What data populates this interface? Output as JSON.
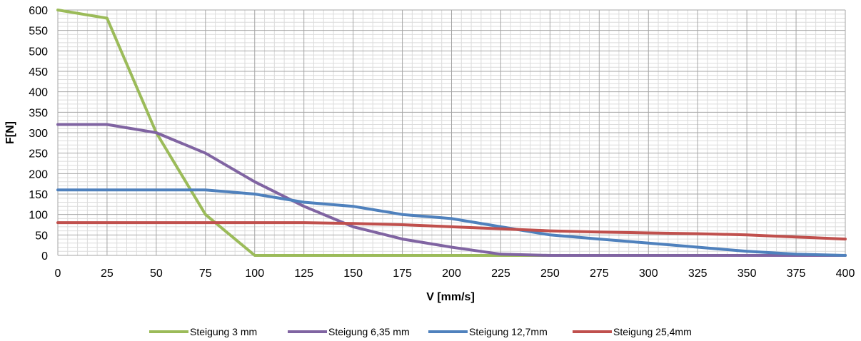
{
  "chart_data": {
    "type": "line",
    "xlabel": "V [mm/s]",
    "ylabel": "F[N]",
    "xlim": [
      0,
      400
    ],
    "ylim": [
      0,
      600
    ],
    "x_ticks": [
      "0",
      "25",
      "50",
      "75",
      "100",
      "125",
      "150",
      "175",
      "200",
      "225",
      "250",
      "275",
      "300",
      "325",
      "350",
      "375",
      "400"
    ],
    "y_ticks": [
      "0",
      "50",
      "100",
      "150",
      "200",
      "250",
      "300",
      "350",
      "400",
      "450",
      "500",
      "550",
      "600"
    ],
    "grid": true,
    "legend_position": "bottom",
    "series": [
      {
        "name": "Steigung 3 mm",
        "color": "#9bbb59",
        "points": [
          [
            0,
            600
          ],
          [
            25,
            580
          ],
          [
            50,
            300
          ],
          [
            75,
            100
          ],
          [
            100,
            0
          ],
          [
            125,
            0
          ],
          [
            150,
            0
          ],
          [
            175,
            0
          ],
          [
            200,
            0
          ],
          [
            225,
            0
          ],
          [
            250,
            0
          ],
          [
            275,
            0
          ],
          [
            300,
            0
          ],
          [
            325,
            0
          ],
          [
            350,
            0
          ],
          [
            375,
            0
          ],
          [
            400,
            0
          ]
        ]
      },
      {
        "name": "Steigung 6,35 mm",
        "color": "#8064a2",
        "points": [
          [
            0,
            320
          ],
          [
            25,
            320
          ],
          [
            50,
            300
          ],
          [
            75,
            250
          ],
          [
            100,
            180
          ],
          [
            125,
            120
          ],
          [
            150,
            70
          ],
          [
            175,
            40
          ],
          [
            200,
            20
          ],
          [
            225,
            3
          ],
          [
            250,
            0
          ],
          [
            275,
            0
          ],
          [
            300,
            0
          ],
          [
            325,
            0
          ],
          [
            350,
            0
          ],
          [
            375,
            0
          ],
          [
            400,
            0
          ]
        ]
      },
      {
        "name": "Steigung 12,7mm",
        "color": "#4f81bd",
        "points": [
          [
            0,
            160
          ],
          [
            25,
            160
          ],
          [
            50,
            160
          ],
          [
            75,
            160
          ],
          [
            100,
            150
          ],
          [
            125,
            130
          ],
          [
            150,
            120
          ],
          [
            175,
            100
          ],
          [
            200,
            90
          ],
          [
            225,
            70
          ],
          [
            250,
            50
          ],
          [
            275,
            40
          ],
          [
            300,
            30
          ],
          [
            325,
            20
          ],
          [
            350,
            10
          ],
          [
            375,
            3
          ],
          [
            400,
            0
          ]
        ]
      },
      {
        "name": "Steigung 25,4mm",
        "color": "#c0504d",
        "points": [
          [
            0,
            80
          ],
          [
            25,
            80
          ],
          [
            50,
            80
          ],
          [
            75,
            80
          ],
          [
            100,
            80
          ],
          [
            125,
            80
          ],
          [
            150,
            78
          ],
          [
            175,
            75
          ],
          [
            200,
            70
          ],
          [
            225,
            65
          ],
          [
            250,
            60
          ],
          [
            275,
            57
          ],
          [
            300,
            55
          ],
          [
            325,
            53
          ],
          [
            350,
            50
          ],
          [
            375,
            45
          ],
          [
            400,
            40
          ]
        ]
      }
    ]
  }
}
